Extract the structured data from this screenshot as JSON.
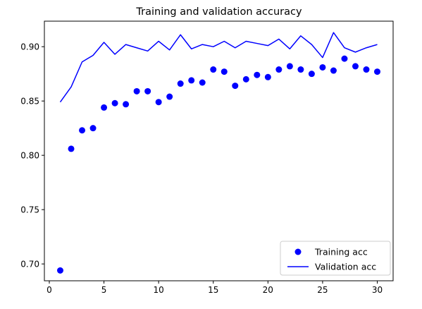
{
  "chart_data": {
    "type": "scatter+line",
    "title": "Training and validation accuracy",
    "xlabel": "",
    "ylabel": "",
    "xlim": [
      -0.45,
      31.45
    ],
    "ylim": [
      0.6845,
      0.9235
    ],
    "xticks": [
      0,
      5,
      10,
      15,
      20,
      25,
      30
    ],
    "yticks": [
      0.7,
      0.75,
      0.8,
      0.85,
      0.9
    ],
    "grid": false,
    "legend_position": "lower-right",
    "series": [
      {
        "name": "Training acc",
        "kind": "scatter",
        "color": "#0000ff",
        "x": [
          1,
          2,
          3,
          4,
          5,
          6,
          7,
          8,
          9,
          10,
          11,
          12,
          13,
          14,
          15,
          16,
          17,
          18,
          19,
          20,
          21,
          22,
          23,
          24,
          25,
          26,
          27,
          28,
          29,
          30
        ],
        "y": [
          0.694,
          0.806,
          0.823,
          0.825,
          0.844,
          0.848,
          0.847,
          0.859,
          0.859,
          0.849,
          0.854,
          0.866,
          0.869,
          0.867,
          0.879,
          0.877,
          0.864,
          0.87,
          0.874,
          0.872,
          0.879,
          0.882,
          0.879,
          0.875,
          0.881,
          0.878,
          0.889,
          0.882,
          0.879,
          0.877
        ]
      },
      {
        "name": "Validation acc",
        "kind": "line",
        "color": "#0000ff",
        "x": [
          1,
          2,
          3,
          4,
          5,
          6,
          7,
          8,
          9,
          10,
          11,
          12,
          13,
          14,
          15,
          16,
          17,
          18,
          19,
          20,
          21,
          22,
          23,
          24,
          25,
          26,
          27,
          28,
          29,
          30
        ],
        "y": [
          0.849,
          0.863,
          0.886,
          0.892,
          0.904,
          0.893,
          0.902,
          0.899,
          0.896,
          0.905,
          0.897,
          0.911,
          0.898,
          0.902,
          0.9,
          0.905,
          0.899,
          0.905,
          0.903,
          0.901,
          0.907,
          0.898,
          0.91,
          0.902,
          0.89,
          0.913,
          0.899,
          0.895,
          0.899,
          0.902
        ]
      }
    ]
  }
}
